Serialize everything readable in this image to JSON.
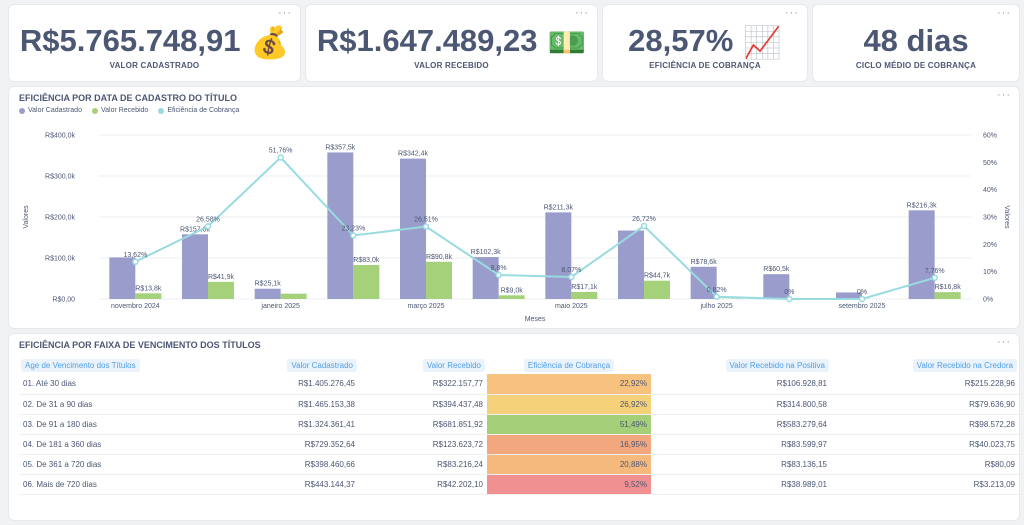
{
  "kpis": [
    {
      "value": "R$5.765.748,91",
      "emoji": "💰",
      "label": "VALOR CADASTRADO"
    },
    {
      "value": "R$1.647.489,23",
      "emoji": "💵",
      "label": "VALOR RECEBIDO"
    },
    {
      "value": "28,57%",
      "emoji": "📈",
      "label": "EFICIÊNCIA DE COBRANÇA"
    },
    {
      "value": "48 dias",
      "emoji": "",
      "label": "CICLO MÉDIO DE COBRANÇA"
    }
  ],
  "menu_label": "···",
  "chart_title": "EFICIÊNCIA POR DATA DE CADASTRO DO TÍTULO",
  "chart_data": {
    "type": "bar",
    "title": "EFICIÊNCIA POR DATA DE CADASTRO DO TÍTULO",
    "xlabel": "Meses",
    "ylabel": "Valores",
    "y2label": "Valores",
    "ylim": [
      0,
      400000
    ],
    "y2lim": [
      0,
      60
    ],
    "yticks": [
      "R$0,00",
      "R$100,0k",
      "R$200,0k",
      "R$300,0k",
      "R$400,0k"
    ],
    "y2ticks": [
      "0%",
      "10%",
      "20%",
      "30%",
      "40%",
      "50%",
      "60%"
    ],
    "xticks": [
      "novembro 2024",
      "janeiro 2025",
      "março 2025",
      "maio 2025",
      "julho 2025",
      "setembro 2025"
    ],
    "series": [
      {
        "name": "Valor Cadastrado",
        "color": "#9a9ccb",
        "values": [
          101500,
          157800,
          25100,
          357500,
          342400,
          102300,
          211300,
          167000,
          78600,
          60500,
          16000,
          216300
        ],
        "labels": [
          "",
          "R$157,8k",
          "R$25,1k",
          "R$357,5k",
          "R$342,4k",
          "R$102,3k",
          "R$211,3k",
          "",
          "R$78,6k",
          "R$60,5k",
          "",
          "R$216,3k"
        ]
      },
      {
        "name": "Valor Recebido",
        "color": "#a5d17a",
        "values": [
          13800,
          41900,
          13000,
          83000,
          90800,
          9000,
          17100,
          44700,
          650,
          0,
          0,
          16800
        ],
        "labels": [
          "R$13,8k",
          "R$41,9k",
          "",
          "R$83,0k",
          "R$90,8k",
          "R$9,0k",
          "R$17,1k",
          "R$44,7k",
          "",
          "",
          "",
          "R$16,8k"
        ]
      },
      {
        "name": "Eficiência de Cobrança",
        "color": "#98dbe0",
        "type": "line",
        "values": [
          13.62,
          26.58,
          51.76,
          23.23,
          26.51,
          8.8,
          8.07,
          26.72,
          0.82,
          0,
          0,
          7.76
        ],
        "labels": [
          "13,62%",
          "26,58%",
          "51,76%",
          "23,23%",
          "26,51%",
          "8,8%",
          "8,07%",
          "26,72%",
          "0,82%",
          "0%",
          "0%",
          "7,76%"
        ]
      }
    ]
  },
  "table_title": "EFICIÊNCIA POR FAIXA DE VENCIMENTO DOS TÍTULOS",
  "table": {
    "headers": [
      "Age de Vencimento dos Títulos",
      "Valor Cadastrado",
      "Valor Recebido",
      "Eficiência de Cobrança",
      "Valor Recebido na Positiva",
      "Valor Recebido na Credora"
    ],
    "rows": [
      {
        "cells": [
          "01. Até 30 dias",
          "R$1.405.276,45",
          "R$322.157,77",
          "22,92%",
          "R$106.928,81",
          "R$215.228,96"
        ],
        "color": "#f6c27e"
      },
      {
        "cells": [
          "02. De 31 a 90 dias",
          "R$1.465.153,38",
          "R$394.437,48",
          "26,92%",
          "R$314.800,58",
          "R$79.636,90"
        ],
        "color": "#f5d27a"
      },
      {
        "cells": [
          "03. De 91 a 180 dias",
          "R$1.324.361,41",
          "R$681.851,92",
          "51,49%",
          "R$583.279,64",
          "R$98.572,28"
        ],
        "color": "#a5cf78"
      },
      {
        "cells": [
          "04. De 181 a 360 dias",
          "R$729.352,64",
          "R$123.623,72",
          "16,95%",
          "R$83.599,97",
          "R$40.023,75"
        ],
        "color": "#f3a77e"
      },
      {
        "cells": [
          "05. De 361 a 720 dias",
          "R$398.460,66",
          "R$83.216,24",
          "20,88%",
          "R$83.136,15",
          "R$80,09"
        ],
        "color": "#f5b97e"
      },
      {
        "cells": [
          "06. Mais de 720 dias",
          "R$443.144,37",
          "R$42.202,10",
          "9,52%",
          "R$38.989,01",
          "R$3.213,09"
        ],
        "color": "#f09090"
      }
    ]
  }
}
